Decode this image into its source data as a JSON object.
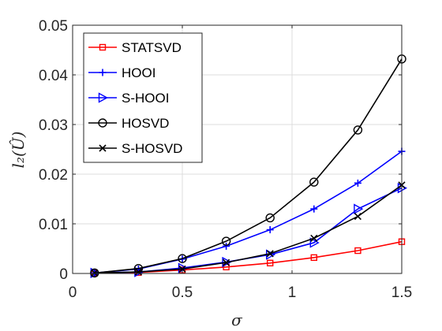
{
  "chart_data": {
    "type": "line",
    "xlabel": "σ",
    "ylabel": "l₂(Û)",
    "xlim": [
      0,
      1.5
    ],
    "ylim": [
      0,
      0.05
    ],
    "grid": true,
    "legend_position": "top-left",
    "x_ticks": [
      "0",
      "0.5",
      "1",
      "1.5"
    ],
    "y_ticks": [
      "0",
      "0.01",
      "0.02",
      "0.03",
      "0.04",
      "0.05"
    ],
    "x": [
      0.1,
      0.3,
      0.5,
      0.7,
      0.9,
      1.1,
      1.3,
      1.5
    ],
    "series": [
      {
        "name": "STATSVD",
        "color": "#ff0000",
        "marker": "square",
        "values": [
          0.0001,
          0.0002,
          0.0007,
          0.0013,
          0.0021,
          0.0032,
          0.0046,
          0.0064
        ]
      },
      {
        "name": "HOOI",
        "color": "#0000ff",
        "marker": "plus",
        "values": [
          0.0001,
          0.0009,
          0.0029,
          0.0055,
          0.0088,
          0.013,
          0.0182,
          0.0246
        ]
      },
      {
        "name": "S-HOOI",
        "color": "#0000ff",
        "marker": "triangle-right",
        "values": [
          0.0001,
          0.0003,
          0.0011,
          0.0023,
          0.0038,
          0.0062,
          0.013,
          0.0172
        ]
      },
      {
        "name": "HOSVD",
        "color": "#000000",
        "marker": "circle",
        "values": [
          0.0001,
          0.001,
          0.003,
          0.0065,
          0.0112,
          0.0184,
          0.0289,
          0.0432
        ]
      },
      {
        "name": "S-HOSVD",
        "color": "#000000",
        "marker": "x",
        "values": [
          0.0001,
          0.0003,
          0.0009,
          0.0022,
          0.004,
          0.0071,
          0.0115,
          0.0178
        ]
      }
    ]
  }
}
